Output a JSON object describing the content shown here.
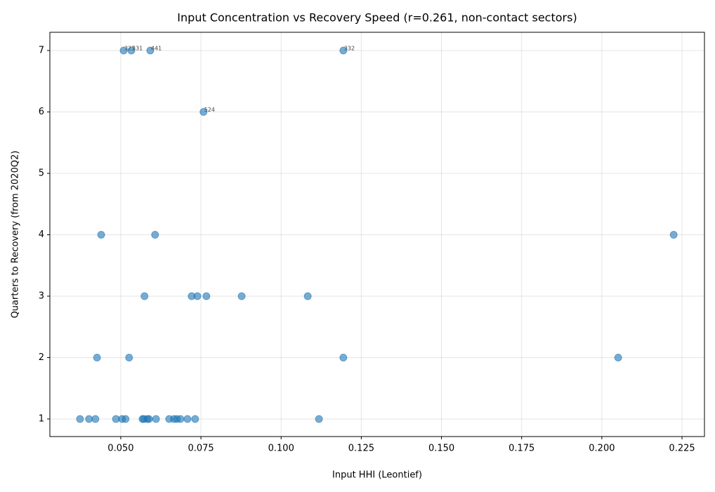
{
  "chart_data": {
    "type": "scatter",
    "title": "Input Concentration vs Recovery Speed (r=0.261, non-contact sectors)",
    "x_label": "Input HHI (Leontief)",
    "y_label": "Quarters to Recovery (from 2020Q2)",
    "color": "#1f77b4",
    "grid": true,
    "x": [
      0.0509,
      0.0533,
      0.0592,
      0.1194,
      0.0758,
      0.0439,
      0.0607,
      0.2224,
      0.0574,
      0.0721,
      0.0739,
      0.0767,
      0.0877,
      0.1083,
      0.0426,
      0.0526,
      0.1194,
      0.2051,
      0.0373,
      0.0401,
      0.0421,
      0.0485,
      0.0504,
      0.0515,
      0.0568,
      0.0572,
      0.0583,
      0.0588,
      0.061,
      0.0651,
      0.0666,
      0.0675,
      0.0686,
      0.0708,
      0.0732,
      0.1118
    ],
    "values": [
      7,
      7,
      7,
      7,
      6,
      4,
      4,
      4,
      3,
      3,
      3,
      3,
      3,
      3,
      2,
      2,
      2,
      2,
      1,
      1,
      1,
      1,
      1,
      1,
      1,
      1,
      1,
      1,
      1,
      1,
      1,
      1,
      1,
      1,
      1,
      1
    ],
    "point_labels": [
      "321",
      "331",
      "441",
      "332",
      "524",
      null,
      null,
      null,
      null,
      null,
      null,
      null,
      null,
      null,
      null,
      null,
      null,
      null,
      null,
      null,
      null,
      null,
      null,
      null,
      null,
      null,
      null,
      null,
      null,
      null,
      null,
      null,
      null,
      null,
      null,
      null
    ],
    "xlim": [
      0.0279,
      0.232
    ],
    "ylim": [
      0.714,
      7.297
    ],
    "xticks": [
      {
        "value": 0.05,
        "label": "0.050"
      },
      {
        "value": 0.075,
        "label": "0.075"
      },
      {
        "value": 0.1,
        "label": "0.100"
      },
      {
        "value": 0.125,
        "label": "0.125"
      },
      {
        "value": 0.15,
        "label": "0.150"
      },
      {
        "value": 0.175,
        "label": "0.175"
      },
      {
        "value": 0.2,
        "label": "0.200"
      },
      {
        "value": 0.225,
        "label": "0.225"
      }
    ],
    "yticks": [
      1,
      2,
      3,
      4,
      5,
      6,
      7
    ]
  }
}
